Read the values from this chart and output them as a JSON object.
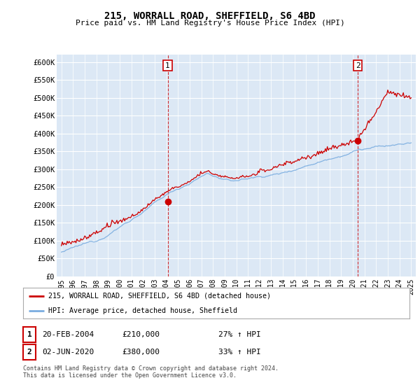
{
  "title": "215, WORRALL ROAD, SHEFFIELD, S6 4BD",
  "subtitle": "Price paid vs. HM Land Registry's House Price Index (HPI)",
  "ylabel_ticks": [
    "£0",
    "£50K",
    "£100K",
    "£150K",
    "£200K",
    "£250K",
    "£300K",
    "£350K",
    "£400K",
    "£450K",
    "£500K",
    "£550K",
    "£600K"
  ],
  "ylim": [
    0,
    620000
  ],
  "ytick_vals": [
    0,
    50000,
    100000,
    150000,
    200000,
    250000,
    300000,
    350000,
    400000,
    450000,
    500000,
    550000,
    600000
  ],
  "x_start_year": 1995,
  "x_end_year": 2025,
  "hpi_color": "#7aade0",
  "price_color": "#cc0000",
  "dashed_color": "#cc0000",
  "marker1_year": 2004.12,
  "marker1_price": 210000,
  "marker2_year": 2020.42,
  "marker2_price": 380000,
  "legend_label1": "215, WORRALL ROAD, SHEFFIELD, S6 4BD (detached house)",
  "legend_label2": "HPI: Average price, detached house, Sheffield",
  "note1_date": "20-FEB-2004",
  "note1_price": "£210,000",
  "note1_hpi": "27% ↑ HPI",
  "note2_date": "02-JUN-2020",
  "note2_price": "£380,000",
  "note2_hpi": "33% ↑ HPI",
  "footer": "Contains HM Land Registry data © Crown copyright and database right 2024.\nThis data is licensed under the Open Government Licence v3.0.",
  "background_color": "#ffffff",
  "plot_bg_color": "#dce8f5"
}
